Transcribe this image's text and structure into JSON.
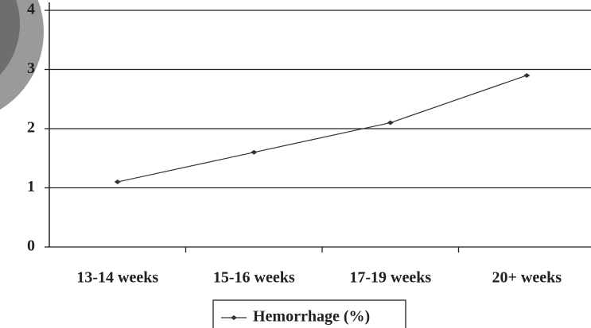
{
  "chart_data": {
    "type": "line",
    "categories": [
      "13-14 weeks",
      "15-16 weeks",
      "17-19 weeks",
      "20+ weeks"
    ],
    "series": [
      {
        "name": "Hemorrhage (%)",
        "color": "#333333",
        "values": [
          1.1,
          1.6,
          2.1,
          2.9
        ]
      }
    ],
    "ylim": [
      0,
      4
    ],
    "yticks": [
      0,
      1,
      2,
      3,
      4
    ],
    "grid": true,
    "legend": "bottom"
  }
}
